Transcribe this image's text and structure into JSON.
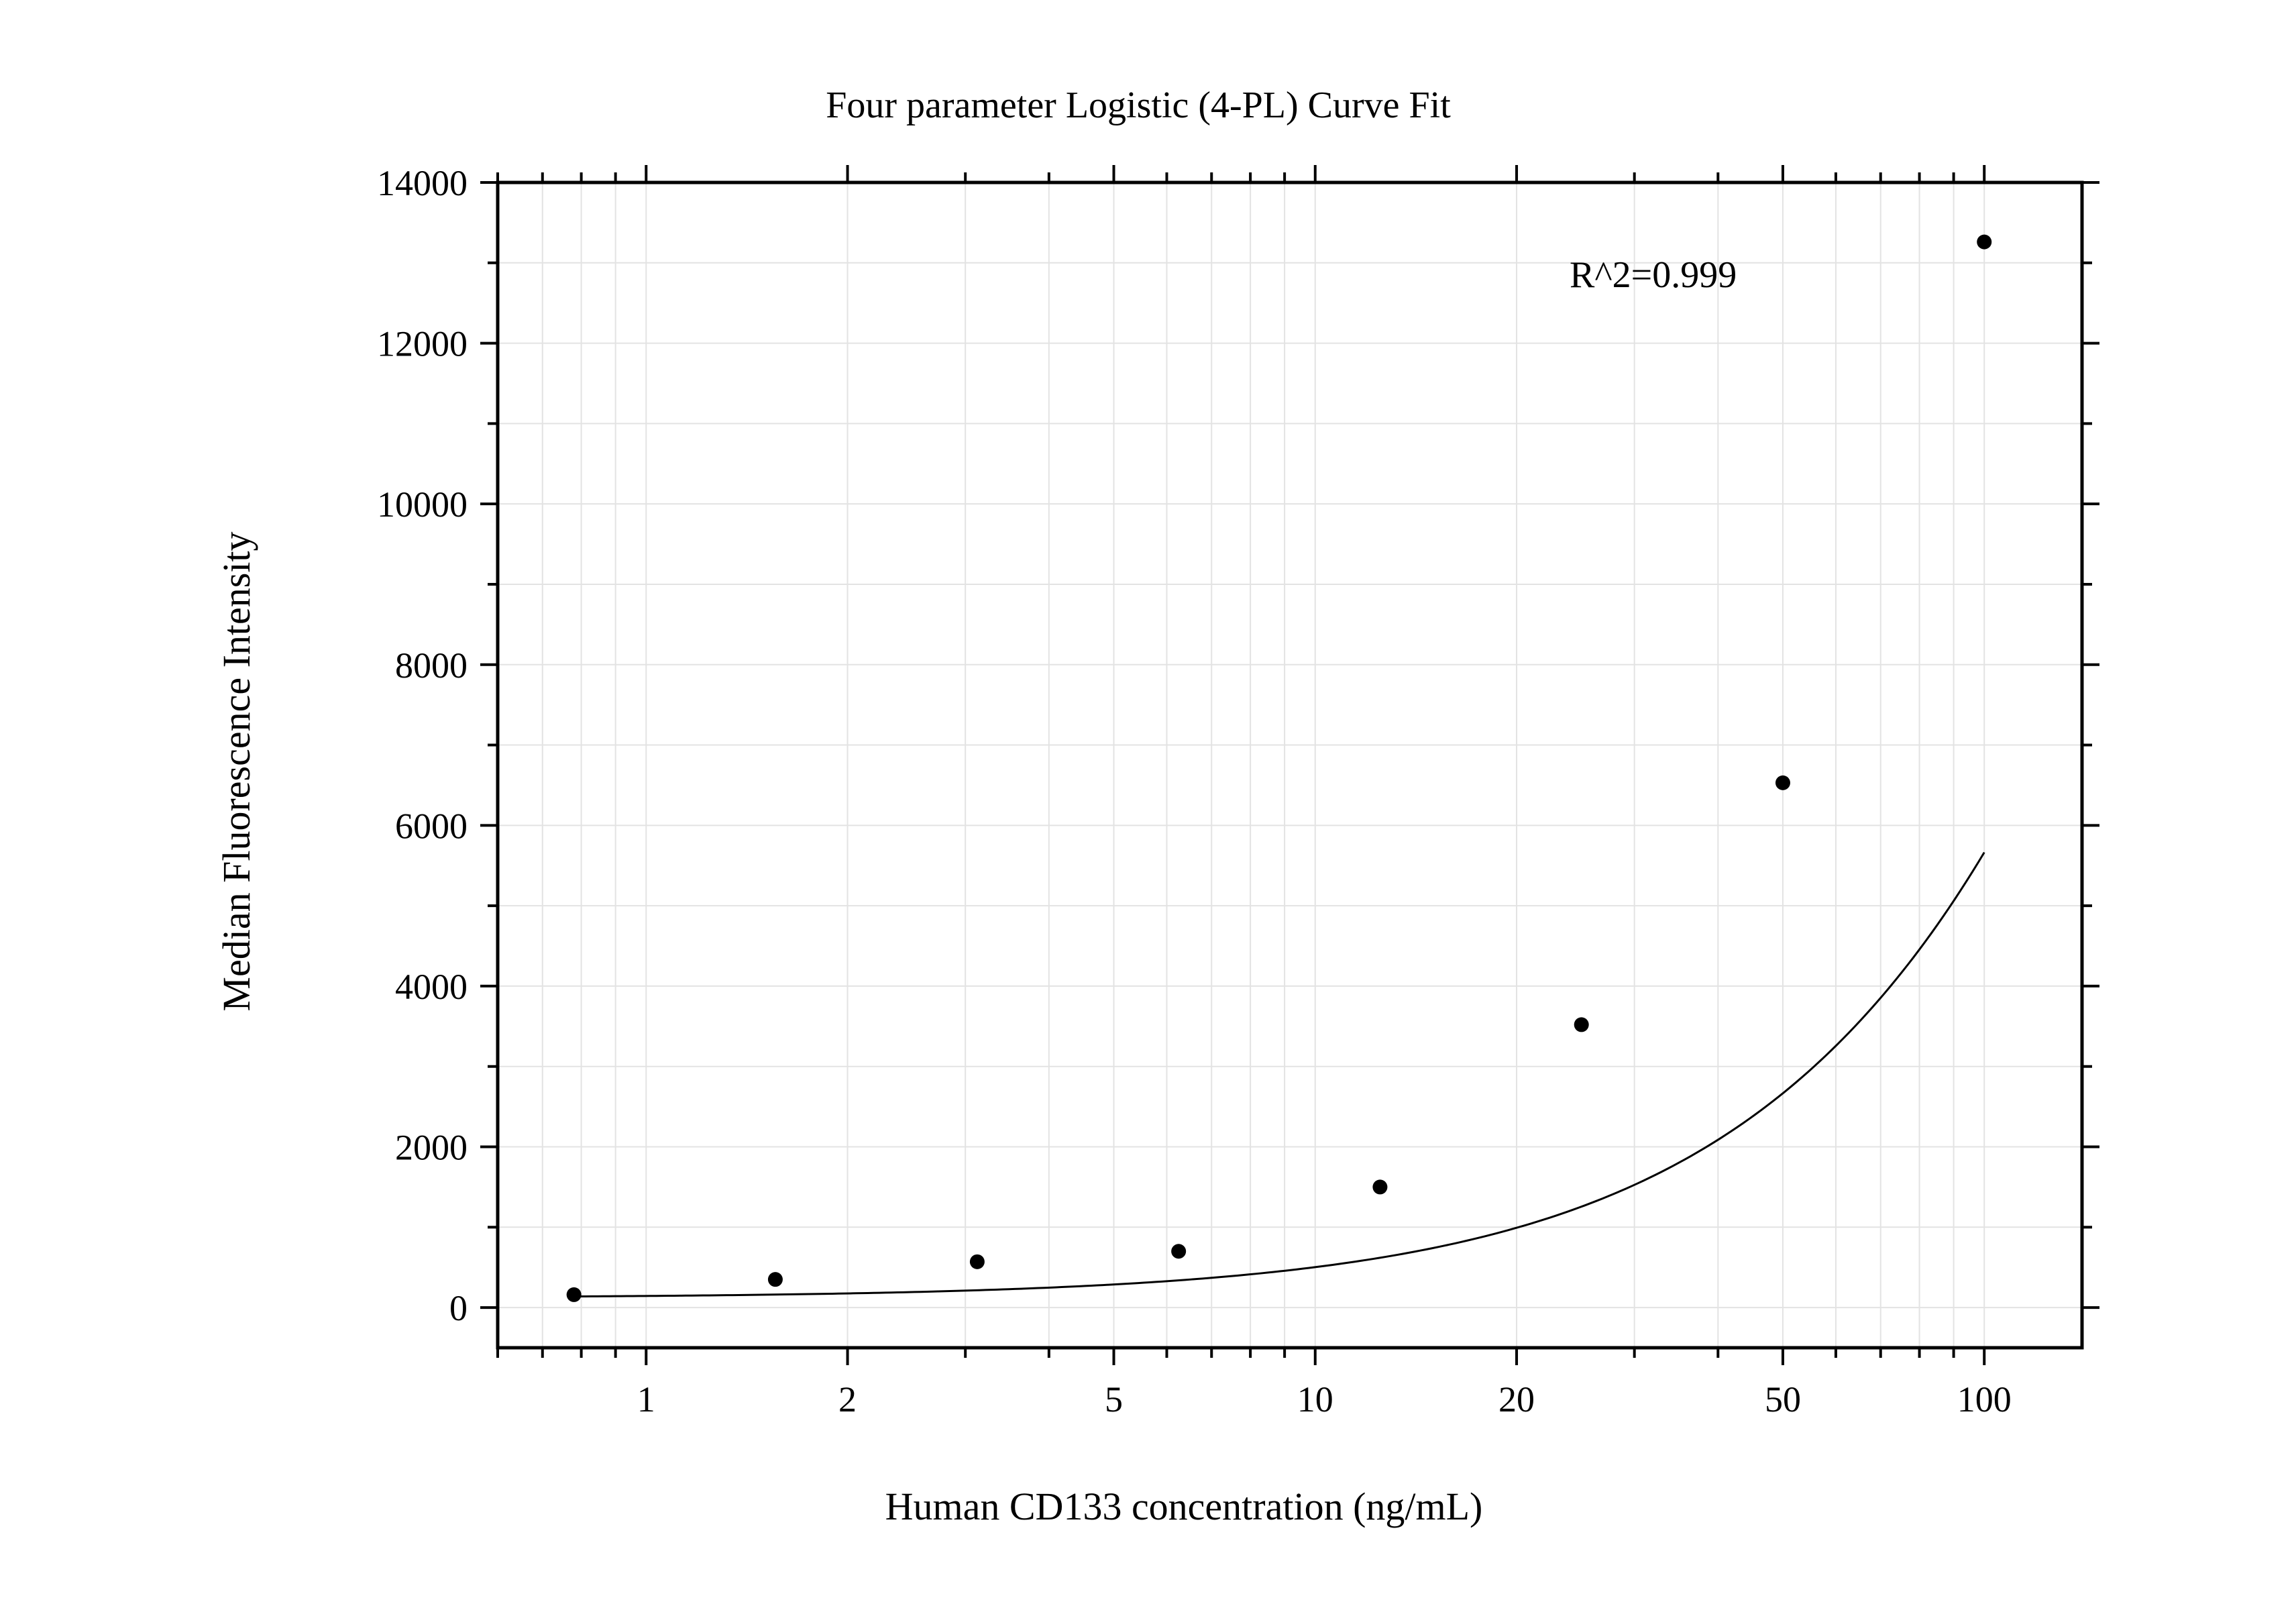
{
  "chart_data": {
    "type": "scatter",
    "title": "Four parameter Logistic (4-PL) Curve Fit",
    "xlabel": "Human CD133 concentration (ng/mL)",
    "ylabel": "Median Fluorescence Intensity",
    "x_scale": "log",
    "xlim": [
      0.6,
      140
    ],
    "ylim": [
      -500,
      14000
    ],
    "grid": true,
    "x_ticks": [
      {
        "value": 1,
        "label": "1"
      },
      {
        "value": 2,
        "label": "2"
      },
      {
        "value": 5,
        "label": "5"
      },
      {
        "value": 10,
        "label": "10"
      },
      {
        "value": 20,
        "label": "20"
      },
      {
        "value": 50,
        "label": "50"
      },
      {
        "value": 100,
        "label": "100"
      }
    ],
    "y_ticks": [
      {
        "value": 0,
        "label": "0"
      },
      {
        "value": 2000,
        "label": "2000"
      },
      {
        "value": 4000,
        "label": "4000"
      },
      {
        "value": 6000,
        "label": "6000"
      },
      {
        "value": 8000,
        "label": "8000"
      },
      {
        "value": 10000,
        "label": "10000"
      },
      {
        "value": 12000,
        "label": "12000"
      },
      {
        "value": 14000,
        "label": "14000"
      }
    ],
    "points": {
      "x": [
        0.78,
        1.56,
        3.125,
        6.25,
        12.5,
        25,
        50,
        100
      ],
      "y": [
        160,
        350,
        570,
        700,
        1500,
        3520,
        6530,
        13260
      ]
    },
    "fit_curve": {
      "model": "4PL",
      "bottom": 120,
      "top": 60000,
      "ec50": 670,
      "hill": 1.2
    },
    "annotation": "R^2=0.999",
    "colors": {
      "points": "#000000",
      "curve": "#000000",
      "grid": "#e3e3e3",
      "axis": "#000000"
    }
  }
}
